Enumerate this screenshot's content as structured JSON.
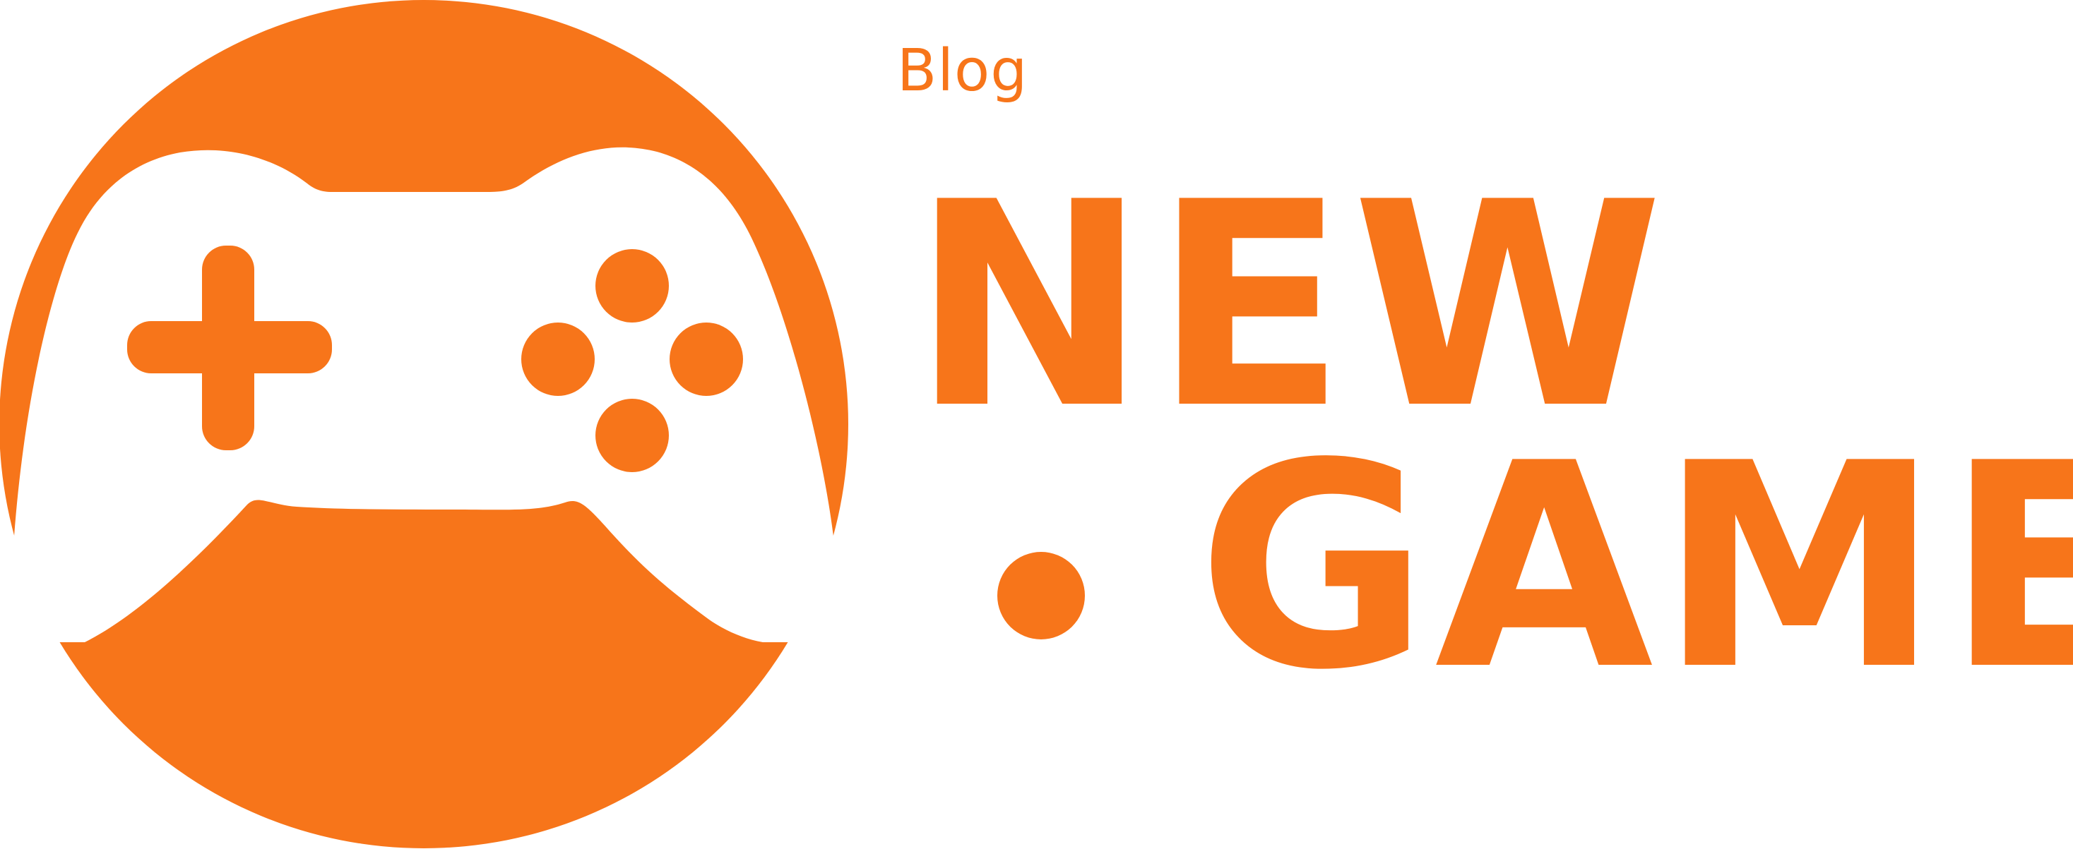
{
  "brand": {
    "accent_color": "#F7751A",
    "background_color": "#FFFFFF"
  },
  "logo": {
    "emblem_icon": "game-controller-icon",
    "blog_label": "Blog",
    "word_new": "NEW",
    "word_game": "GAME"
  }
}
